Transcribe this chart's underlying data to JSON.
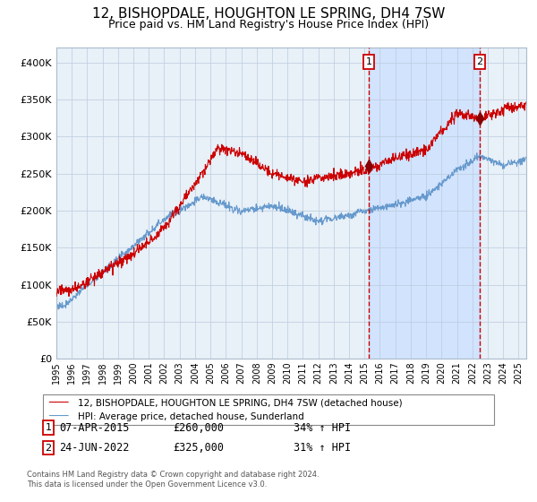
{
  "title": "12, BISHOPDALE, HOUGHTON LE SPRING, DH4 7SW",
  "subtitle": "Price paid vs. HM Land Registry's House Price Index (HPI)",
  "title_fontsize": 11,
  "subtitle_fontsize": 9,
  "background_color": "#ffffff",
  "plot_bg_color": "#ddeeff",
  "ylim": [
    0,
    420000
  ],
  "yticks": [
    0,
    50000,
    100000,
    150000,
    200000,
    250000,
    300000,
    350000,
    400000
  ],
  "legend_label_red": "12, BISHOPDALE, HOUGHTON LE SPRING, DH4 7SW (detached house)",
  "legend_label_blue": "HPI: Average price, detached house, Sunderland",
  "sale1_date": "07-APR-2015",
  "sale1_price": 260000,
  "sale1_pct": "34%",
  "sale2_date": "24-JUN-2022",
  "sale2_price": 325000,
  "sale2_pct": "31%",
  "footnote": "Contains HM Land Registry data © Crown copyright and database right 2024.\nThis data is licensed under the Open Government Licence v3.0.",
  "red_color": "#cc0000",
  "blue_color": "#6699cc",
  "marker_color": "#880000",
  "vline_color": "#cc0000",
  "shade_color": "#cce0ff",
  "grid_color": "#bbccdd",
  "sale1_x": 2015.27,
  "sale2_x": 2022.48,
  "xlim_left": 1995,
  "xlim_right": 2025.5
}
